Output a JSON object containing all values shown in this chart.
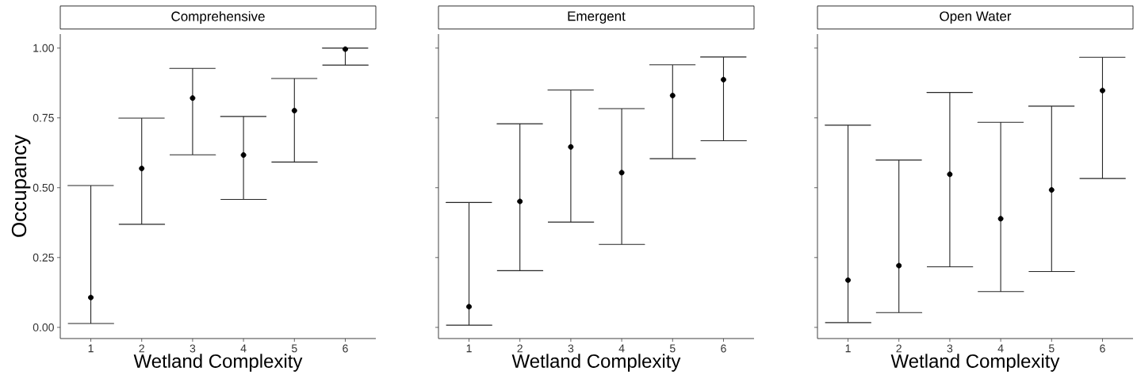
{
  "chart_data": [
    {
      "type": "scatter",
      "title": "Comprehensive",
      "xlabel": "Wetland Complexity",
      "ylabel": "Occupancy",
      "categories": [
        "1",
        "2",
        "3",
        "4",
        "5",
        "6"
      ],
      "ylim": [
        -0.04,
        1.05
      ],
      "yticks": [
        {
          "value": 0,
          "label": "0.00"
        },
        {
          "value": 0.25,
          "label": "0.25"
        },
        {
          "value": 0.5,
          "label": "0.50"
        },
        {
          "value": 0.75,
          "label": "0.75"
        },
        {
          "value": 1,
          "label": "1.00"
        }
      ],
      "grid": false,
      "series": [
        {
          "color": "#000000",
          "values": [
            0.107,
            0.569,
            0.821,
            0.617,
            0.776,
            0.996
          ],
          "errors": [
            [
              0.014,
              0.508
            ],
            [
              0.369,
              0.749
            ],
            [
              0.618,
              0.927
            ],
            [
              0.458,
              0.755
            ],
            [
              0.592,
              0.891
            ],
            [
              0.939,
              1.0
            ]
          ]
        }
      ]
    },
    {
      "type": "scatter",
      "title": "Emergent",
      "xlabel": "Wetland Complexity",
      "categories": [
        "1",
        "2",
        "3",
        "4",
        "5",
        "6"
      ],
      "ylim": [
        -0.04,
        1.05
      ],
      "yticks": [
        {
          "value": 0,
          "label": null
        },
        {
          "value": 0.25,
          "label": null
        },
        {
          "value": 0.5,
          "label": null
        },
        {
          "value": 0.75,
          "label": null
        },
        {
          "value": 1,
          "label": null
        }
      ],
      "tick_labels": "x",
      "grid": false,
      "series": [
        {
          "color": "#000000",
          "values": [
            0.074,
            0.451,
            0.646,
            0.554,
            0.83,
            0.887
          ],
          "errors": [
            [
              0.008,
              0.447
            ],
            [
              0.203,
              0.729
            ],
            [
              0.377,
              0.85
            ],
            [
              0.297,
              0.783
            ],
            [
              0.604,
              0.94
            ],
            [
              0.668,
              0.968
            ]
          ]
        }
      ]
    },
    {
      "type": "scatter",
      "title": "Open Water",
      "xlabel": "Wetland Complexity",
      "categories": [
        "1",
        "2",
        "3",
        "4",
        "5",
        "6"
      ],
      "ylim": [
        -0.04,
        1.05
      ],
      "yticks": [
        {
          "value": 0,
          "label": null
        },
        {
          "value": 0.25,
          "label": null
        },
        {
          "value": 0.5,
          "label": null
        },
        {
          "value": 0.75,
          "label": null
        },
        {
          "value": 1,
          "label": null
        }
      ],
      "tick_labels": "x",
      "grid": false,
      "series": [
        {
          "color": "#000000",
          "values": [
            0.169,
            0.221,
            0.548,
            0.389,
            0.492,
            0.848
          ],
          "errors": [
            [
              0.017,
              0.724
            ],
            [
              0.053,
              0.599
            ],
            [
              0.217,
              0.841
            ],
            [
              0.128,
              0.734
            ],
            [
              0.2,
              0.792
            ],
            [
              0.533,
              0.967
            ]
          ]
        }
      ]
    }
  ]
}
